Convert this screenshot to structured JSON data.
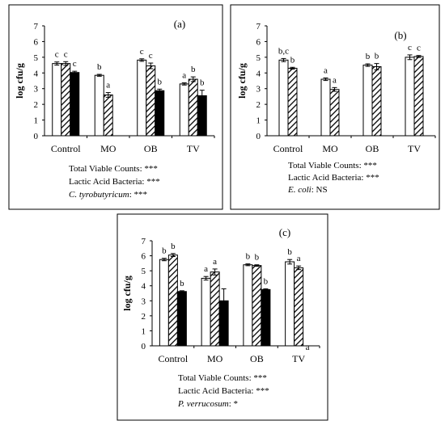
{
  "colors": {
    "pattern": "#000000",
    "solid": "#000000",
    "open": "#ffffff"
  },
  "chart_data": [
    {
      "type": "bar",
      "panel_label": "(a)",
      "ylabel": "log cfu/g",
      "ylim": [
        0,
        7
      ],
      "yticks": [
        "0",
        "1",
        "2",
        "3",
        "4",
        "5",
        "6",
        "7"
      ],
      "categories": [
        "Control",
        "MO",
        "OB",
        "TV"
      ],
      "series": [
        {
          "style": "open",
          "values": [
            4.6,
            3.85,
            4.82,
            3.3
          ],
          "errors": [
            0.1,
            0.06,
            0.08,
            0.07
          ],
          "labels": [
            "c",
            "b",
            "c",
            "a"
          ]
        },
        {
          "style": "hatched",
          "values": [
            4.6,
            2.6,
            4.45,
            3.6
          ],
          "errors": [
            0.12,
            0.15,
            0.18,
            0.15
          ],
          "labels": [
            "c",
            "a",
            "c",
            "b"
          ]
        },
        {
          "style": "solid",
          "values": [
            4.03,
            null,
            2.87,
            2.55
          ],
          "errors": [
            0.08,
            0,
            0.1,
            0.35
          ],
          "labels": [
            "c",
            "",
            "b",
            "b"
          ]
        }
      ],
      "footnotes": [
        {
          "text": "Total Viable Counts: ***",
          "italic": false
        },
        {
          "text": "Lactic Acid Bacteria: ***",
          "italic": false
        },
        {
          "text": "C. tyrobutyricum: ***",
          "italic": true
        }
      ]
    },
    {
      "type": "bar",
      "panel_label": "(b)",
      "ylabel": "log cfu/g",
      "ylim": [
        0,
        7
      ],
      "yticks": [
        "0",
        "1",
        "2",
        "3",
        "4",
        "5",
        "6",
        "7"
      ],
      "categories": [
        "Control",
        "MO",
        "OB",
        "TV"
      ],
      "series": [
        {
          "style": "open",
          "values": [
            4.82,
            3.6,
            4.5,
            5.0
          ],
          "errors": [
            0.1,
            0.08,
            0.08,
            0.15
          ],
          "labels": [
            "b,c",
            "a",
            "b",
            "c"
          ]
        },
        {
          "style": "hatched",
          "values": [
            4.3,
            2.95,
            4.4,
            5.05
          ],
          "errors": [
            0.06,
            0.12,
            0.2,
            0.06
          ],
          "labels": [
            "b",
            "a",
            "b",
            "c"
          ]
        }
      ],
      "footnotes": [
        {
          "text": "Total Viable Counts: ***",
          "italic": false
        },
        {
          "text": "Lactic Acid Bacteria: ***",
          "italic": false
        },
        {
          "text": "E. coli: NS",
          "italic": true
        }
      ]
    },
    {
      "type": "bar",
      "panel_label": "(c)",
      "ylabel": "log cfu/g",
      "ylim": [
        0,
        7
      ],
      "yticks": [
        "0",
        "1",
        "2",
        "3",
        "4",
        "5",
        "6",
        "7"
      ],
      "categories": [
        "Control",
        "MO",
        "OB",
        "TV"
      ],
      "series": [
        {
          "style": "open",
          "values": [
            5.75,
            4.5,
            5.4,
            5.6
          ],
          "errors": [
            0.08,
            0.12,
            0.06,
            0.15
          ],
          "labels": [
            "b",
            "a",
            "b",
            "b"
          ]
        },
        {
          "style": "hatched",
          "values": [
            6.05,
            4.92,
            5.35,
            5.2
          ],
          "errors": [
            0.1,
            0.2,
            0.05,
            0.12
          ],
          "labels": [
            "b",
            "a",
            "b",
            "a"
          ]
        },
        {
          "style": "solid",
          "values": [
            3.62,
            3.0,
            3.75,
            0
          ],
          "errors": [
            0.05,
            0.8,
            0.05,
            0
          ],
          "labels": [
            "b",
            "",
            "b",
            "a"
          ]
        }
      ],
      "footnotes": [
        {
          "text": "Total Viable Counts: ***",
          "italic": false
        },
        {
          "text": "Lactic Acid Bacteria: ***",
          "italic": false
        },
        {
          "text": "P. verrucosum: *",
          "italic": true
        }
      ]
    }
  ]
}
